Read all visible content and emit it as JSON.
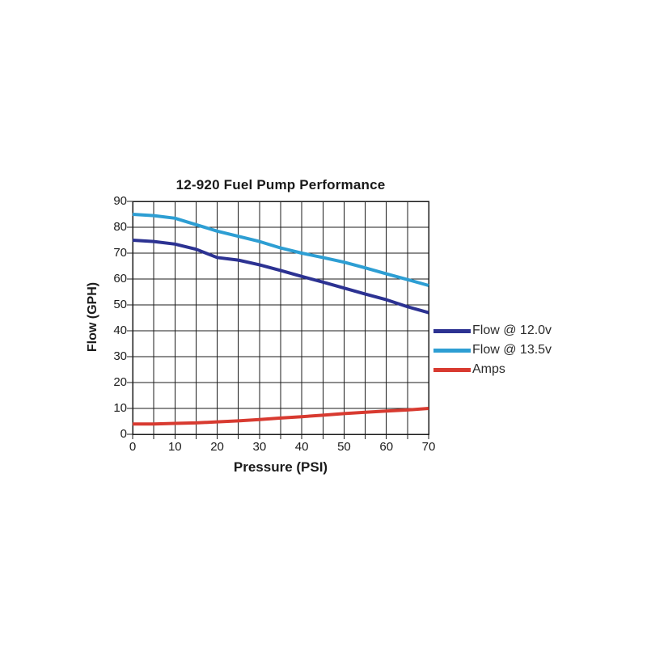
{
  "chart_data": {
    "type": "line",
    "title": "12-920 Fuel Pump Performance",
    "xlabel": "Pressure (PSI)",
    "ylabel": "Flow (GPH)",
    "xlim": [
      0,
      70
    ],
    "ylim": [
      0,
      90
    ],
    "xticks": [
      0,
      10,
      20,
      30,
      40,
      50,
      60,
      70
    ],
    "yticks": [
      0,
      10,
      20,
      30,
      40,
      50,
      60,
      70,
      80,
      90
    ],
    "x_grid_step": 5,
    "grid": true,
    "grid_color": "#1b1b1b",
    "legend_position": "right-middle",
    "x": [
      0,
      5,
      10,
      15,
      20,
      25,
      30,
      35,
      40,
      45,
      50,
      55,
      60,
      65,
      70
    ],
    "series": [
      {
        "name": "Flow @ 12.0v",
        "color": "#2c3292",
        "values": [
          75,
          74.5,
          73.5,
          71.5,
          68.3,
          67.3,
          65.5,
          63.3,
          61,
          58.8,
          56.5,
          54.2,
          52,
          49.3,
          47
        ]
      },
      {
        "name": "Flow @ 13.5v",
        "color": "#2d9ed3",
        "values": [
          85,
          84.5,
          83.5,
          81,
          78.5,
          76.5,
          74.5,
          72,
          70,
          68.3,
          66.5,
          64.3,
          62,
          59.8,
          57.5
        ]
      },
      {
        "name": "Amps",
        "color": "#d83a30",
        "values": [
          4,
          4,
          4.2,
          4.4,
          4.8,
          5.2,
          5.7,
          6.3,
          6.8,
          7.4,
          8,
          8.5,
          9,
          9.4,
          10
        ]
      }
    ]
  }
}
